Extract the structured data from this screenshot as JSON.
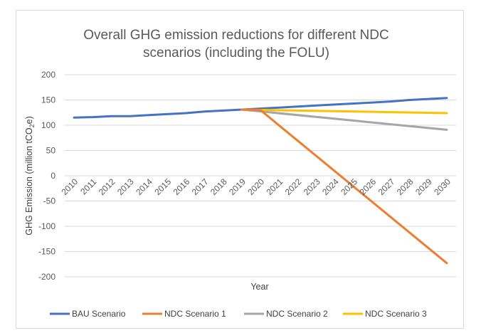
{
  "chart_data": {
    "type": "line",
    "title_line1": "Overall GHG emission reductions for different NDC",
    "title_line2": "scenarios (including the FOLU)",
    "xlabel": "Year",
    "ylabel": "GHG Emission (million tCO2e)",
    "ylabel_main": "GHG Emission (million tCO",
    "ylabel_sub": "2",
    "ylabel_end": "e)",
    "ylim": [
      -200,
      200
    ],
    "yticks": [
      200,
      150,
      100,
      50,
      0,
      -50,
      -100,
      -150,
      -200
    ],
    "x": [
      "2010",
      "2011",
      "2012",
      "2013",
      "2014",
      "2015",
      "2016",
      "2017",
      "2018",
      "2019",
      "2020",
      "2021",
      "2022",
      "2023",
      "2024",
      "2025",
      "2026",
      "2027",
      "2028",
      "2029",
      "2030"
    ],
    "grid": "horizontal",
    "legend_position": "bottom",
    "series": [
      {
        "name": "BAU Scenario",
        "color": "#4472c4",
        "values": [
          115,
          116,
          118,
          118,
          120,
          122,
          124,
          127,
          129,
          131,
          133,
          135,
          137,
          139,
          141,
          143,
          145,
          147,
          150,
          152,
          154
        ]
      },
      {
        "name": "NDC Scenario 1",
        "color": "#ed7d31",
        "values": [
          null,
          null,
          null,
          null,
          null,
          null,
          null,
          null,
          null,
          131,
          130,
          null,
          null,
          null,
          null,
          null,
          null,
          null,
          null,
          null,
          -173
        ]
      },
      {
        "name": "NDC Scenario 2",
        "color": "#a5a5a5",
        "values": [
          null,
          null,
          null,
          null,
          null,
          null,
          null,
          null,
          null,
          131,
          null,
          null,
          null,
          null,
          null,
          null,
          null,
          null,
          null,
          null,
          91
        ]
      },
      {
        "name": "NDC Scenario 3",
        "color": "#ffc000",
        "values": [
          null,
          null,
          null,
          null,
          null,
          null,
          null,
          null,
          null,
          131,
          null,
          null,
          null,
          null,
          null,
          null,
          null,
          null,
          null,
          null,
          124
        ]
      }
    ]
  }
}
